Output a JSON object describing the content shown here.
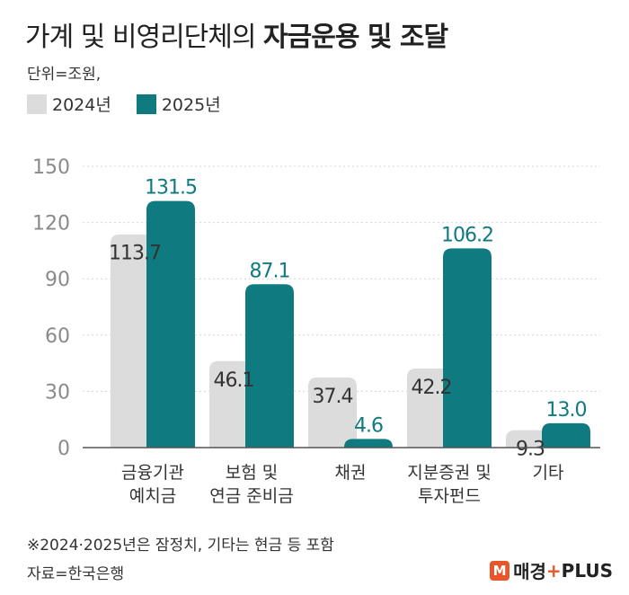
{
  "title_regular": "가계 및 비영리단체의 ",
  "title_bold": "자금운용 및 조달",
  "unit_label": "단위=조원,",
  "footnote": "※2024·2025년은 잠정치, 기타는 현금 등 포함",
  "source": "자료=한국은행",
  "logo": {
    "mark": "M",
    "text_a": "매경",
    "text_plus": "+",
    "text_b": "PLUS"
  },
  "colors": {
    "series_2024": "#dcdcdc",
    "series_2025": "#0f7a80",
    "axis_text": "#8a8a8a",
    "grid": "#d6d6d6"
  },
  "chart_data": {
    "type": "bar",
    "categories": [
      [
        "금융기관",
        "예치금"
      ],
      [
        "보험 및",
        "연금 준비금"
      ],
      [
        "채권"
      ],
      [
        "지분증권 및",
        "투자펀드"
      ],
      [
        "기타"
      ]
    ],
    "series": [
      {
        "name": "2024년",
        "values": [
          113.7,
          46.1,
          37.4,
          42.2,
          9.3
        ],
        "labels": [
          "113.7",
          "46.1",
          "37.4",
          "42.2",
          "9.3"
        ]
      },
      {
        "name": "2025년",
        "values": [
          131.5,
          87.1,
          4.6,
          106.2,
          13.0
        ],
        "labels": [
          "131.5",
          "87.1",
          "4.6",
          "106.2",
          "13.0"
        ]
      }
    ],
    "yticks": [
      "0",
      "30",
      "60",
      "90",
      "120",
      "150"
    ],
    "ylim": [
      0,
      150
    ],
    "grid": true,
    "legend_position": "top-left"
  }
}
